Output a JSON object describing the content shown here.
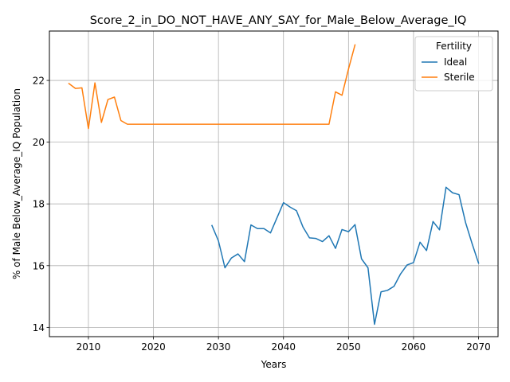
{
  "chart_data": {
    "type": "line",
    "title": "Score_2_in_DO_NOT_HAVE_ANY_SAY_for_Male_Below_Average_IQ",
    "xlabel": "Years",
    "ylabel": "% of Male Below_Average_IQ Population",
    "xlim": [
      2004,
      2073
    ],
    "ylim": [
      13.7,
      23.6
    ],
    "xticks": [
      2010,
      2020,
      2030,
      2040,
      2050,
      2060,
      2070
    ],
    "yticks": [
      14,
      16,
      18,
      20,
      22
    ],
    "grid": true,
    "legend": {
      "title": "Fertility",
      "position": "top-right"
    },
    "series": [
      {
        "name": "Ideal",
        "color": "#1f77b4",
        "x": [
          2029,
          2030,
          2031,
          2032,
          2033,
          2034,
          2035,
          2036,
          2037,
          2038,
          2039,
          2040,
          2041,
          2042,
          2043,
          2044,
          2045,
          2046,
          2047,
          2048,
          2049,
          2050,
          2051,
          2052,
          2053,
          2054,
          2055,
          2056,
          2057,
          2058,
          2059,
          2060,
          2061,
          2062,
          2063,
          2064,
          2065,
          2066,
          2067,
          2068,
          2069,
          2070
        ],
        "y": [
          17.3,
          16.8,
          15.93,
          16.25,
          16.38,
          16.13,
          17.32,
          17.2,
          17.2,
          17.06,
          17.55,
          18.04,
          17.9,
          17.78,
          17.25,
          16.9,
          16.88,
          16.78,
          16.97,
          16.56,
          17.17,
          17.1,
          17.33,
          16.22,
          15.93,
          14.1,
          15.15,
          15.2,
          15.33,
          15.73,
          16.02,
          16.1,
          16.76,
          16.49,
          17.43,
          17.16,
          18.54,
          18.36,
          18.3,
          17.4,
          16.72,
          16.08
        ]
      },
      {
        "name": "Sterile",
        "color": "#ff7f0e",
        "x": [
          2007,
          2008,
          2009,
          2010,
          2011,
          2012,
          2013,
          2014,
          2015,
          2016,
          2017,
          2018,
          2019,
          2020,
          2021,
          2022,
          2023,
          2024,
          2025,
          2026,
          2027,
          2028,
          2029,
          2030,
          2031,
          2032,
          2033,
          2034,
          2035,
          2036,
          2037,
          2038,
          2039,
          2040,
          2041,
          2042,
          2043,
          2044,
          2045,
          2046,
          2047,
          2048,
          2049,
          2050,
          2051
        ],
        "y": [
          21.9,
          21.74,
          21.76,
          20.44,
          21.92,
          20.64,
          21.38,
          21.46,
          20.7,
          20.58,
          20.58,
          20.58,
          20.58,
          20.58,
          20.58,
          20.58,
          20.58,
          20.58,
          20.58,
          20.58,
          20.58,
          20.58,
          20.58,
          20.58,
          20.58,
          20.58,
          20.58,
          20.58,
          20.58,
          20.58,
          20.58,
          20.58,
          20.58,
          20.58,
          20.58,
          20.58,
          20.58,
          20.58,
          20.58,
          20.58,
          20.58,
          21.63,
          21.52,
          22.37,
          23.15
        ]
      }
    ]
  }
}
